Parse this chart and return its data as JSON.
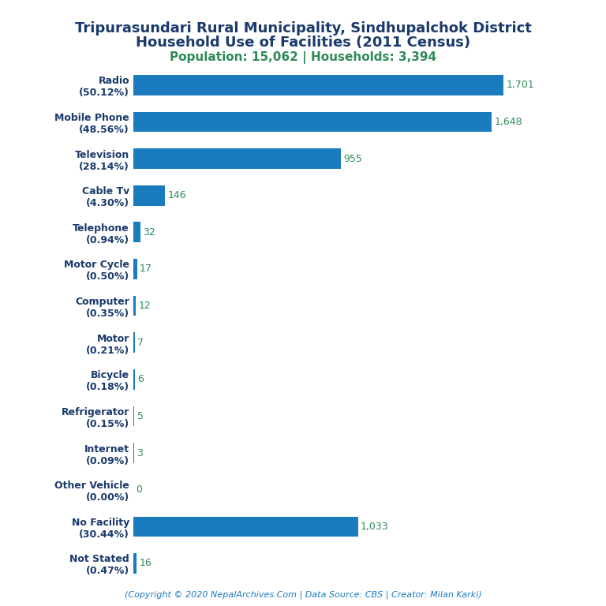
{
  "title_line1": "Tripurasundari Rural Municipality, Sindhupalchok District",
  "title_line2": "Household Use of Facilities (2011 Census)",
  "subtitle": "Population: 15,062 | Households: 3,394",
  "footer": "(Copyright © 2020 NepalArchives.Com | Data Source: CBS | Creator: Milan Karki)",
  "categories": [
    "Radio\n(50.12%)",
    "Mobile Phone\n(48.56%)",
    "Television\n(28.14%)",
    "Cable Tv\n(4.30%)",
    "Telephone\n(0.94%)",
    "Motor Cycle\n(0.50%)",
    "Computer\n(0.35%)",
    "Motor\n(0.21%)",
    "Bicycle\n(0.18%)",
    "Refrigerator\n(0.15%)",
    "Internet\n(0.09%)",
    "Other Vehicle\n(0.00%)",
    "No Facility\n(30.44%)",
    "Not Stated\n(0.47%)"
  ],
  "values": [
    1701,
    1648,
    955,
    146,
    32,
    17,
    12,
    7,
    6,
    5,
    3,
    0,
    1033,
    16
  ],
  "bar_color": "#1a7bbf",
  "label_color": "#2e8b57",
  "title_color": "#1a3a6b",
  "subtitle_color": "#2e8b57",
  "footer_color": "#1a7bbf",
  "background_color": "#ffffff",
  "title_fontsize": 13,
  "subtitle_fontsize": 11,
  "label_fontsize": 9,
  "category_fontsize": 9,
  "footer_fontsize": 8
}
